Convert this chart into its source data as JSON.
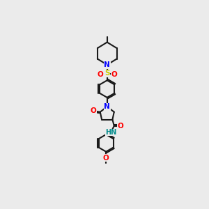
{
  "background_color": "#ebebeb",
  "bond_color": "#1a1a1a",
  "bond_width": 1.5,
  "atom_colors": {
    "N": "#0000ff",
    "O": "#ff0000",
    "S": "#cccc00",
    "H": "#008b8b",
    "C": "#1a1a1a"
  },
  "font_size_atom": 7.5,
  "font_size_small": 6.0
}
